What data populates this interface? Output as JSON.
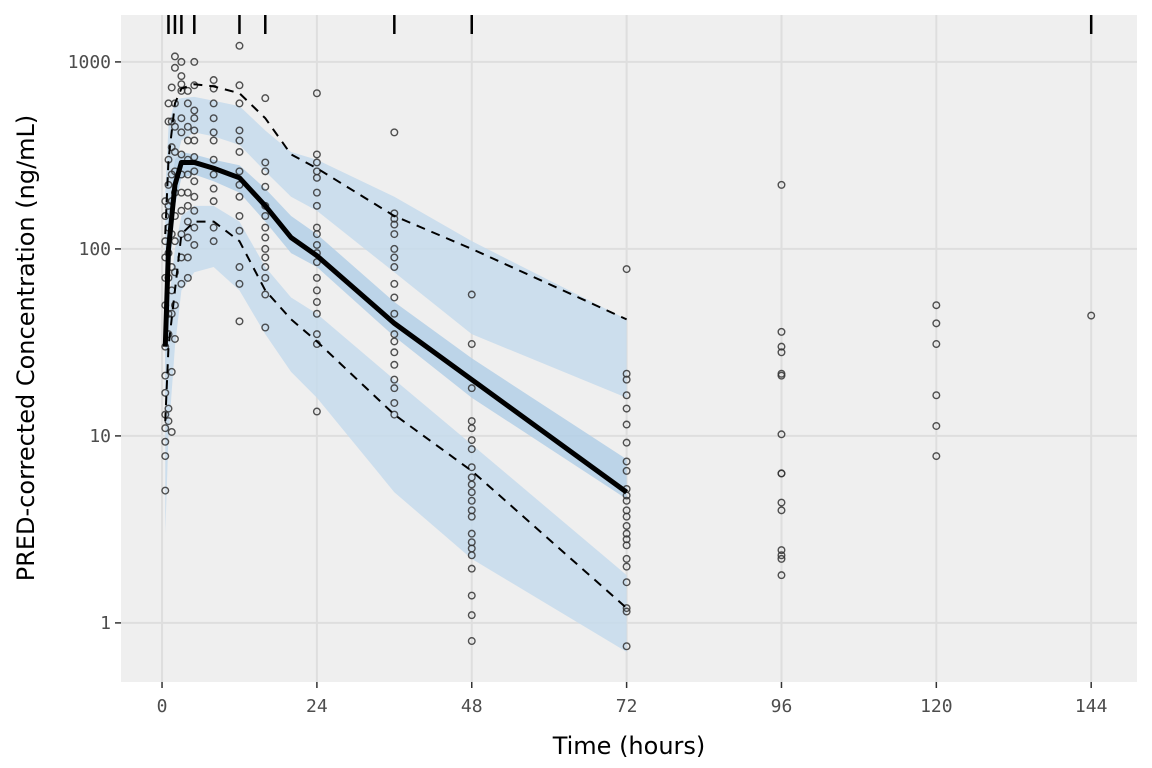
{
  "chart_data": {
    "type": "vpc",
    "x_label": "Time (hours)",
    "y_label": "PRED-corrected Concentration (ng/mL)",
    "xlim": [
      -6.36,
      151.1
    ],
    "ylim": [
      0.483,
      1782
    ],
    "log_y": true,
    "grid": true,
    "xticks": [
      0,
      24,
      48,
      72,
      96,
      120,
      144
    ],
    "yticks": [
      1,
      10,
      100,
      1000
    ],
    "rug": [
      1,
      2,
      3,
      5,
      12,
      16,
      36,
      48,
      144
    ],
    "band_x": [
      0.5,
      1,
      2,
      3,
      5,
      8,
      12,
      16,
      20,
      24,
      36,
      48,
      72
    ],
    "bands": [
      {
        "color": "#c6dbec",
        "lower": [
          40,
          120,
          280,
          380,
          420,
          400,
          360,
          260,
          190,
          160,
          75,
          35,
          16
        ],
        "upper": [
          200,
          450,
          620,
          640,
          650,
          620,
          580,
          430,
          330,
          300,
          190,
          110,
          42
        ]
      },
      {
        "color": "#b3cfe6",
        "lower": [
          15,
          60,
          170,
          240,
          250,
          230,
          200,
          140,
          95,
          80,
          34,
          16,
          4.6
        ],
        "upper": [
          45,
          150,
          300,
          330,
          320,
          300,
          280,
          210,
          150,
          120,
          52,
          26,
          7.5
        ]
      },
      {
        "color": "#c6dbec",
        "lower": [
          3,
          10,
          30,
          60,
          75,
          80,
          60,
          35,
          22,
          16,
          5,
          2.2,
          0.7
        ],
        "upper": [
          20,
          50,
          100,
          150,
          170,
          170,
          140,
          80,
          55,
          45,
          20,
          9,
          1.8
        ]
      }
    ],
    "lines": [
      {
        "style": "dashed",
        "color": "#000000",
        "values": [
          120,
          300,
          600,
          720,
          760,
          740,
          680,
          500,
          320,
          270,
          150,
          100,
          42
        ]
      },
      {
        "style": "solid",
        "color": "#000000",
        "values": [
          30,
          100,
          220,
          290,
          290,
          270,
          240,
          170,
          115,
          92,
          40,
          20,
          5
        ]
      },
      {
        "style": "dashed",
        "color": "#000000",
        "values": [
          12,
          30,
          60,
          120,
          140,
          140,
          110,
          60,
          42,
          32,
          13,
          6.5,
          1.2
        ]
      }
    ],
    "points": {
      "color": "#333333",
      "x": [
        96,
        96,
        96,
        96,
        96,
        96,
        96,
        96,
        96,
        96,
        96,
        96,
        96,
        96,
        96,
        120,
        120,
        120,
        120,
        120,
        120,
        144,
        72,
        72,
        72,
        72,
        72,
        72,
        72,
        72,
        72,
        72,
        72,
        72,
        72,
        72,
        72,
        72,
        72,
        72,
        72,
        72,
        72,
        72,
        72,
        72,
        48,
        48,
        48,
        48,
        48,
        48,
        48,
        48,
        48,
        48,
        48,
        48,
        48,
        48,
        48,
        48,
        48,
        48,
        48,
        48,
        48,
        48,
        36,
        36,
        36,
        36,
        36,
        36,
        36,
        36,
        36,
        36,
        36,
        36,
        36,
        36,
        36,
        36,
        36,
        36,
        36,
        24,
        24,
        24,
        24,
        24,
        24,
        24,
        24,
        24,
        24,
        24,
        24,
        24,
        24,
        24,
        24,
        24,
        24,
        24,
        16,
        16,
        16,
        16,
        16,
        16,
        16,
        16,
        16,
        16,
        16,
        16,
        16,
        16,
        12,
        12,
        12,
        12,
        12,
        12,
        12,
        12,
        12,
        12,
        12,
        12,
        12,
        12,
        8,
        8,
        8,
        8,
        8,
        8,
        8,
        8,
        8,
        8,
        8,
        8,
        5,
        5,
        5,
        5,
        5,
        5,
        5,
        5,
        5,
        5,
        5,
        5,
        5,
        4,
        4,
        4,
        4,
        4,
        4,
        4,
        4,
        4,
        4,
        4,
        4,
        3,
        3,
        3,
        3,
        3,
        3,
        3,
        3,
        3,
        3,
        3,
        3,
        3,
        2,
        2,
        2,
        2,
        2,
        2,
        2,
        2,
        2,
        2,
        2,
        2,
        1.5,
        1.5,
        1.5,
        1.5,
        1.5,
        1.5,
        1.5,
        1.5,
        1.5,
        1.5,
        1.5,
        1,
        1,
        1,
        1,
        1,
        1,
        1,
        1,
        1,
        1,
        1,
        1,
        0.5,
        0.5,
        0.5,
        0.5,
        0.5,
        0.5,
        0.5,
        0.5,
        0.5,
        0.5,
        0.5,
        0.5,
        0.5,
        0.5
      ],
      "y": [
        220,
        36,
        30,
        28,
        21.5,
        21,
        10.2,
        6.3,
        6.3,
        4.4,
        4,
        2.45,
        2.3,
        2.2,
        1.8,
        50,
        40,
        31,
        16.5,
        11.3,
        7.8,
        44,
        78,
        21.5,
        20,
        16.5,
        14,
        11.5,
        9.2,
        7.3,
        6.5,
        5.2,
        4.8,
        4.5,
        4,
        3.7,
        3.3,
        3,
        2.8,
        2.6,
        2.2,
        2,
        1.65,
        1.2,
        1.15,
        0.75,
        57,
        31,
        18,
        12,
        11,
        9.5,
        8.5,
        6.8,
        6,
        5.5,
        5,
        4.5,
        4,
        3.7,
        3,
        2.7,
        2.5,
        2.3,
        1.95,
        1.4,
        1.1,
        0.8,
        420,
        155,
        145,
        135,
        120,
        100,
        90,
        80,
        65,
        55,
        45,
        35,
        32,
        28,
        24,
        20,
        18,
        15,
        13,
        680,
        320,
        290,
        260,
        240,
        200,
        170,
        130,
        120,
        105,
        95,
        85,
        70,
        60,
        52,
        45,
        35,
        31,
        13.5,
        640,
        290,
        260,
        215,
        170,
        150,
        130,
        115,
        100,
        90,
        80,
        70,
        57,
        38,
        1220,
        750,
        600,
        430,
        380,
        330,
        260,
        220,
        190,
        150,
        125,
        80,
        65,
        41,
        800,
        720,
        600,
        500,
        420,
        380,
        300,
        250,
        210,
        180,
        130,
        110,
        1000,
        750,
        550,
        500,
        430,
        380,
        310,
        260,
        230,
        190,
        160,
        130,
        105,
        700,
        600,
        450,
        380,
        300,
        250,
        200,
        170,
        140,
        115,
        90,
        70,
        1000,
        840,
        760,
        700,
        500,
        420,
        320,
        250,
        200,
        160,
        120,
        90,
        65,
        1070,
        930,
        600,
        450,
        330,
        260,
        200,
        150,
        110,
        75,
        50,
        33,
        730,
        480,
        350,
        250,
        180,
        120,
        80,
        60,
        45,
        22,
        10.5,
        600,
        480,
        300,
        220,
        170,
        130,
        95,
        70,
        45,
        35,
        14,
        12,
        180,
        150,
        110,
        90,
        70,
        50,
        30,
        21,
        17,
        13,
        11,
        9.3,
        7.8,
        5.1
      ]
    }
  }
}
